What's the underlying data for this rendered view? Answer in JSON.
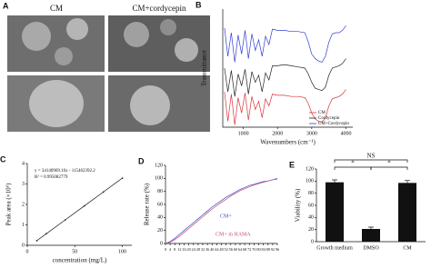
{
  "figure_a": {
    "panel": "A",
    "columns": [
      "CM",
      "CM+cordycepin"
    ]
  },
  "chart_data": [
    {
      "type": "line",
      "panel": "B",
      "x_label": "Wavenumbers (cm⁻¹)",
      "y_label": "Transmittance",
      "x": [
        450,
        550,
        650,
        750,
        850,
        950,
        1050,
        1150,
        1250,
        1350,
        1450,
        1550,
        1650,
        1750,
        1850,
        2000,
        2200,
        2400,
        2600,
        2800,
        2900,
        3000,
        3100,
        3200,
        3300,
        3400,
        3500,
        3600,
        3700,
        3800,
        3900,
        4000
      ],
      "xlim": [
        400,
        4200
      ],
      "xticks": [
        1000,
        2000,
        3000,
        4000
      ],
      "ylim": [
        0,
        100
      ],
      "legend": "lower-right",
      "series": [
        {
          "name": "CM",
          "color": "#d9343a",
          "values": [
            30,
            5,
            28,
            2,
            25,
            12,
            29,
            6,
            26,
            15,
            22,
            8,
            24,
            18,
            28,
            27,
            27,
            26,
            26,
            25,
            20,
            12,
            7,
            5,
            4,
            8,
            18,
            24,
            25,
            26,
            28,
            32
          ]
        },
        {
          "name": "Cordycepin",
          "color": "#222222",
          "values": [
            50,
            30,
            48,
            26,
            45,
            35,
            49,
            28,
            47,
            38,
            44,
            30,
            46,
            40,
            52,
            52,
            53,
            52,
            51,
            50,
            45,
            38,
            33,
            32,
            31,
            34,
            44,
            50,
            51,
            52,
            54,
            58
          ]
        },
        {
          "name": "CM+Cordycepin",
          "color": "#2f3fd0",
          "values": [
            84,
            60,
            80,
            55,
            78,
            62,
            82,
            58,
            79,
            65,
            74,
            60,
            77,
            70,
            83,
            82,
            82,
            81,
            81,
            80,
            72,
            62,
            58,
            56,
            55,
            60,
            72,
            79,
            80,
            80,
            82,
            86
          ]
        }
      ]
    },
    {
      "type": "line",
      "panel": "C",
      "x_label": "concentration (mg/L)",
      "y_label": "Peak area (×10⁶)",
      "x": [
        10,
        20,
        40,
        60,
        80,
        100
      ],
      "xlim": [
        0,
        110
      ],
      "xticks": [
        0,
        50,
        100
      ],
      "ylim": [
        0,
        4
      ],
      "yticks": [
        0,
        1,
        2,
        3,
        4
      ],
      "annotations": [
        "y = 34140969.16x - 115462392.2",
        "R² = 0.995082779"
      ],
      "series": [
        {
          "color": "#111111",
          "values": [
            0.225,
            0.565,
            1.245,
            1.925,
            2.605,
            3.285
          ]
        }
      ]
    },
    {
      "type": "line",
      "panel": "D",
      "y_label": "Release rate (%)",
      "x": [
        0,
        4,
        8,
        12,
        16,
        20,
        24,
        28,
        32,
        36,
        40,
        44,
        48,
        52,
        56,
        60,
        64,
        68,
        72,
        76,
        80,
        84,
        88,
        92,
        96
      ],
      "xlim": [
        0,
        96
      ],
      "xticks": [
        0,
        4,
        8,
        12,
        16,
        20,
        24,
        28,
        32,
        36,
        40,
        44,
        48,
        52,
        56,
        60,
        64,
        68,
        72,
        76,
        80,
        84,
        88,
        92,
        96
      ],
      "ylim": [
        0,
        120
      ],
      "yticks": [
        0,
        20,
        40,
        60,
        80,
        100,
        120
      ],
      "series": [
        {
          "name": "CM+",
          "color": "#3a4fc0",
          "values": [
            0,
            3,
            8,
            14,
            20,
            26,
            32,
            38,
            44,
            50,
            56,
            61,
            66,
            71,
            75,
            79,
            83,
            86,
            89,
            91,
            93,
            95,
            96,
            98,
            100
          ]
        },
        {
          "name": "CM+ in HAMA",
          "color": "#c04a7a",
          "values": [
            0,
            2,
            6,
            11,
            17,
            23,
            29,
            35,
            41,
            47,
            53,
            58,
            63,
            68,
            73,
            77,
            81,
            84,
            87,
            90,
            92,
            94,
            96,
            98,
            99
          ]
        }
      ]
    },
    {
      "type": "bar",
      "panel": "E",
      "y_label": "Viability (%)",
      "categories": [
        "Growth medium",
        "DMSO",
        "CM"
      ],
      "values": [
        98,
        21,
        97
      ],
      "errors": [
        4,
        3,
        4
      ],
      "color": "#111111",
      "ylim": [
        0,
        120
      ],
      "yticks": [
        0,
        20,
        40,
        60,
        80,
        100,
        120
      ],
      "annotations": [
        "NS",
        "*",
        "*"
      ]
    }
  ]
}
